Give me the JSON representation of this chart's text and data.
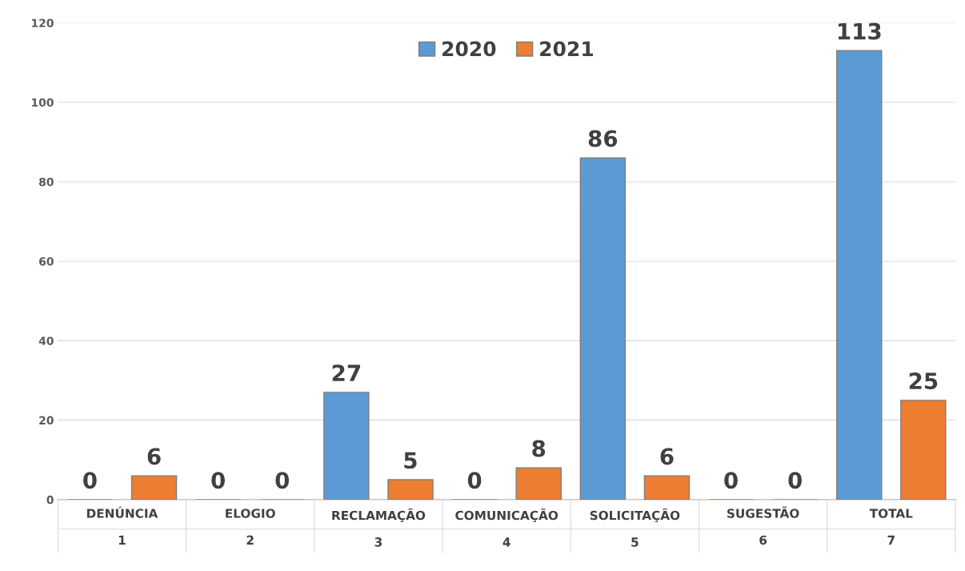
{
  "chart_data": {
    "type": "bar",
    "categories": [
      "DENÚNCIA\n1",
      "ELOGIO\n2",
      "RECLAMAÇÃO\n3",
      "COMUNICAÇÃO\n4",
      "SOLICITAÇÃO\n5",
      "SUGESTÃO\n6",
      "TOTAL\n7"
    ],
    "series": [
      {
        "name": "2020",
        "color": "#5b9bd5",
        "values": [
          0,
          0,
          27,
          0,
          86,
          0,
          113
        ]
      },
      {
        "name": "2021",
        "color": "#ed7d31",
        "values": [
          6,
          0,
          5,
          8,
          6,
          0,
          25
        ]
      }
    ],
    "ylim": [
      0,
      120
    ],
    "yticks": [
      0,
      20,
      40,
      60,
      80,
      100,
      120
    ],
    "grid": "y",
    "legend": "top",
    "data_labels": true
  }
}
